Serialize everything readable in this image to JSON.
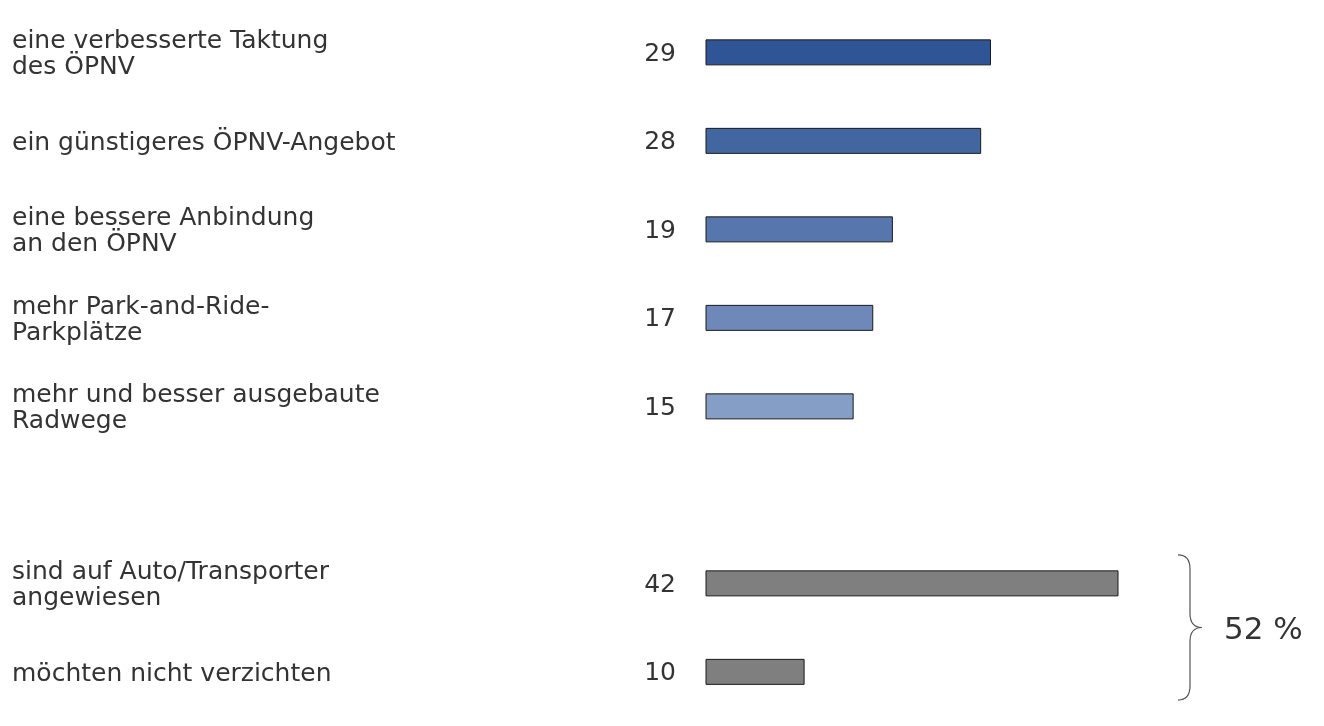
{
  "chart_data": {
    "type": "bar",
    "orientation": "horizontal",
    "categories": [
      "eine verbesserte Taktung\ndes ÖPNV",
      "ein günstigeres ÖPNV-Angebot",
      "eine bessere Anbindung\nan den ÖPNV",
      "mehr Park-and-Ride-\nParkplätze",
      "mehr und besser ausgebaute\nRadwege",
      null,
      "sind auf Auto/Transporter\nangewiesen",
      "möchten nicht verzichten"
    ],
    "values": [
      29,
      28,
      19,
      17,
      15,
      null,
      42,
      10
    ],
    "colors": [
      "#2f5597",
      "#4166a0",
      "#5676ad",
      "#6e89b9",
      "#859ec6",
      "#ffffff",
      "#7f7f7f",
      "#7f7f7f"
    ],
    "data_labels": true,
    "annotations": [
      "52 %"
    ]
  }
}
